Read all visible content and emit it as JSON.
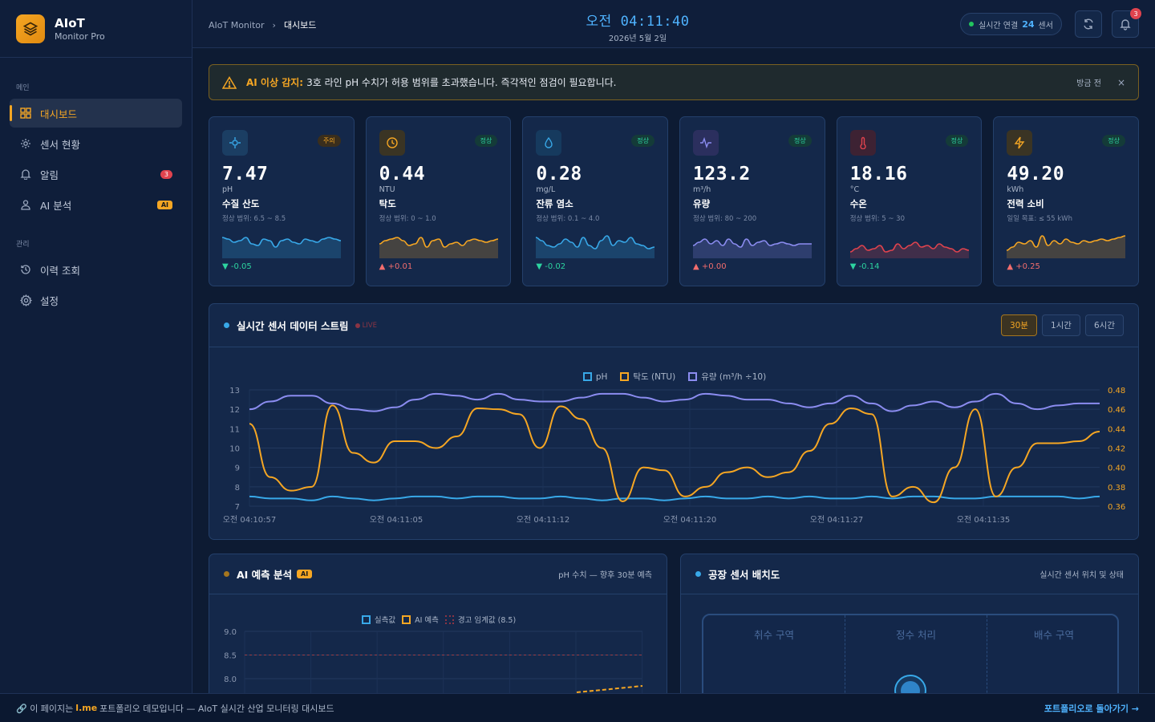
{
  "brand": {
    "name": "AIoT",
    "sub": "Monitor Pro"
  },
  "sidebar": {
    "section_main": "메인",
    "section_admin": "관리",
    "items": [
      {
        "label": "대시보드",
        "icon": "grid-icon",
        "active": true
      },
      {
        "label": "센서 현황",
        "icon": "sensor-icon"
      },
      {
        "label": "알림",
        "icon": "bell-icon",
        "badge": "3"
      },
      {
        "label": "AI 분석",
        "icon": "user-icon",
        "badge": "AI"
      },
      {
        "label": "이력 조회",
        "icon": "history-icon"
      },
      {
        "label": "설정",
        "icon": "gear-icon"
      }
    ]
  },
  "header": {
    "breadcrumb_root": "AIoT Monitor",
    "breadcrumb_current": "대시보드",
    "time_prefix": "오전",
    "time": "04:11:40",
    "date": "2026년 5월 2일",
    "conn_label": "실시간 연결",
    "conn_count": "24",
    "conn_suffix": "센서",
    "notif_count": "3"
  },
  "alert": {
    "title": "AI 이상 감지:",
    "message": "3호 라인 pH 수치가 허용 범위를 초과했습니다. 즉각적인 점검이 필요합니다.",
    "time": "방금 전",
    "close": "×"
  },
  "kpis": [
    {
      "value": "7.47",
      "unit": "pH",
      "label": "수질 산도",
      "range": "정상 범위: 6.5 ~ 8.5",
      "status": "주의",
      "delta": "-0.05",
      "dir": "down",
      "color": "#38a8e8",
      "icon": "crosshair-icon"
    },
    {
      "value": "0.44",
      "unit": "NTU",
      "label": "탁도",
      "range": "정상 범위: 0 ~ 1.0",
      "status": "정상",
      "delta": "+0.01",
      "dir": "up",
      "color": "#f5a623",
      "icon": "clock-icon"
    },
    {
      "value": "0.28",
      "unit": "mg/L",
      "label": "잔류 염소",
      "range": "정상 범위: 0.1 ~ 4.0",
      "status": "정상",
      "delta": "-0.02",
      "dir": "down",
      "color": "#38a8e8",
      "icon": "drop-icon"
    },
    {
      "value": "123.2",
      "unit": "m³/h",
      "label": "유량",
      "range": "정상 범위: 80 ~ 200",
      "status": "정상",
      "delta": "+0.00",
      "dir": "up",
      "color": "#8b8cf0",
      "icon": "pulse-icon"
    },
    {
      "value": "18.16",
      "unit": "°C",
      "label": "수온",
      "range": "정상 범위: 5 ~ 30",
      "status": "정상",
      "delta": "-0.14",
      "dir": "down",
      "color": "#e0434e",
      "icon": "thermometer-icon"
    },
    {
      "value": "49.20",
      "unit": "kWh",
      "label": "전력 소비",
      "range": "일일 목표: ≤ 55 kWh",
      "status": "정상",
      "delta": "+0.25",
      "dir": "up",
      "color": "#f5a623",
      "icon": "bolt-icon"
    }
  ],
  "stream": {
    "title": "실시간 센서 데이터 스트림",
    "live": "LIVE",
    "ranges": [
      "30분",
      "1시간",
      "6시간"
    ],
    "active_range": "30분"
  },
  "chart_data": {
    "type": "line",
    "legend": [
      "pH",
      "탁도 (NTU)",
      "유량 (m³/h ÷10)"
    ],
    "x_ticks": [
      "오전 04:10:57",
      "오전 04:11:05",
      "오전 04:11:12",
      "오전 04:11:20",
      "오전 04:11:27",
      "오전 04:11:35"
    ],
    "y_left_ticks": [
      "13",
      "12",
      "11",
      "10",
      "9",
      "8",
      "7"
    ],
    "y_right_ticks": [
      "0.48",
      "0.46",
      "0.44",
      "0.42",
      "0.40",
      "0.38",
      "0.36"
    ],
    "ylim_left": [
      7,
      13
    ],
    "ylim_right": [
      0.36,
      0.48
    ],
    "series": [
      {
        "name": "pH",
        "axis": "left",
        "color": "#38a8e8",
        "values": [
          7.5,
          7.4,
          7.4,
          7.3,
          7.5,
          7.4,
          7.3,
          7.4,
          7.5,
          7.5,
          7.4,
          7.5,
          7.5,
          7.4,
          7.4,
          7.5,
          7.4,
          7.3,
          7.4,
          7.4,
          7.3,
          7.4,
          7.5,
          7.4,
          7.4,
          7.5,
          7.4,
          7.5,
          7.4,
          7.4,
          7.5,
          7.4,
          7.5,
          7.5,
          7.4,
          7.4,
          7.5,
          7.5,
          7.5,
          7.5,
          7.4,
          7.5
        ]
      },
      {
        "name": "탁도 (NTU)",
        "axis": "right",
        "color": "#f5a623",
        "values": [
          0.445,
          0.39,
          0.376,
          0.38,
          0.464,
          0.415,
          0.405,
          0.427,
          0.427,
          0.42,
          0.432,
          0.461,
          0.46,
          0.455,
          0.42,
          0.463,
          0.45,
          0.42,
          0.365,
          0.4,
          0.397,
          0.37,
          0.38,
          0.395,
          0.4,
          0.39,
          0.395,
          0.417,
          0.445,
          0.461,
          0.455,
          0.37,
          0.38,
          0.364,
          0.4,
          0.46,
          0.37,
          0.4,
          0.425,
          0.425,
          0.427,
          0.437
        ]
      },
      {
        "name": "유량 (m³/h ÷10)",
        "axis": "left",
        "color": "#8b8cf0",
        "values": [
          12.0,
          12.4,
          12.7,
          12.7,
          12.3,
          12.0,
          11.9,
          12.1,
          12.5,
          12.8,
          12.7,
          12.5,
          12.8,
          12.5,
          12.4,
          12.4,
          12.6,
          12.8,
          12.8,
          12.6,
          12.4,
          12.5,
          12.8,
          12.7,
          12.5,
          12.5,
          12.3,
          12.1,
          12.3,
          12.7,
          12.3,
          11.9,
          12.2,
          12.4,
          12.1,
          12.4,
          12.8,
          12.3,
          12.0,
          12.2,
          12.3,
          12.3
        ]
      }
    ]
  },
  "ai": {
    "title": "AI 예측 분석",
    "badge": "AI",
    "subtitle": "pH 수치 — 향후 30분 예측",
    "legend": [
      "실측값",
      "AI 예측",
      "경고 임계값 (8.5)"
    ],
    "y_ticks": [
      "9.0",
      "8.5",
      "8.0"
    ]
  },
  "layout_panel": {
    "title": "공장 센서 배치도",
    "subtitle": "실시간 센서 위치 및 상태",
    "zones": [
      "취수 구역",
      "정수 처리",
      "배수 구역"
    ]
  },
  "footer": {
    "prefix": "🔗 이 페이지는",
    "brand": "l.me",
    "suffix": "포트폴리오 데모입니다 — AIoT 실시간 산업 모니터링 대시보드",
    "back": "포트폴리오로 돌아가기 →"
  }
}
